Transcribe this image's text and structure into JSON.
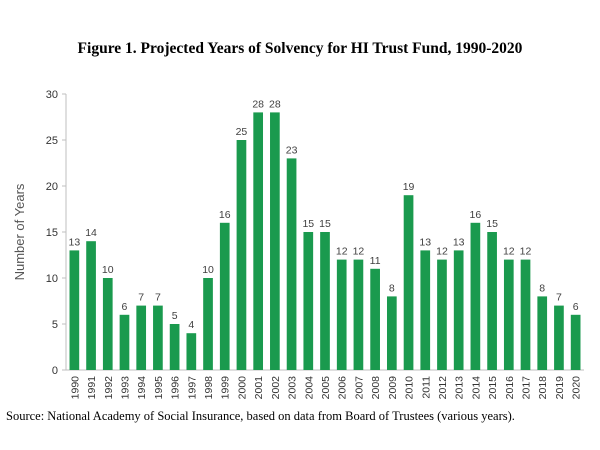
{
  "chart_data": {
    "type": "bar",
    "title": "Figure 1. Projected Years of Solvency for HI Trust Fund, 1990-2020",
    "xlabel": "",
    "ylabel": "Number of Years",
    "ylim": [
      0,
      30
    ],
    "yticks": [
      0,
      5,
      10,
      15,
      20,
      25,
      30
    ],
    "grid": false,
    "bar_color": "#1a9a4e",
    "categories": [
      "1990",
      "1991",
      "1992",
      "1993",
      "1994",
      "1995",
      "1996",
      "1997",
      "1998",
      "1999",
      "2000",
      "2001",
      "2002",
      "2003",
      "2004",
      "2005",
      "2006",
      "2007",
      "2008",
      "2009",
      "2010",
      "2011",
      "2012",
      "2013",
      "2014",
      "2015",
      "2016",
      "2017",
      "2018",
      "2019",
      "2020"
    ],
    "values": [
      13,
      14,
      10,
      6,
      7,
      7,
      5,
      4,
      10,
      16,
      25,
      28,
      28,
      23,
      15,
      15,
      12,
      12,
      11,
      8,
      19,
      13,
      12,
      13,
      16,
      15,
      12,
      12,
      8,
      7,
      6
    ],
    "data_labels": true
  },
  "source": "Source: National Academy of Social Insurance, based on data from Board of Trustees (various years)."
}
